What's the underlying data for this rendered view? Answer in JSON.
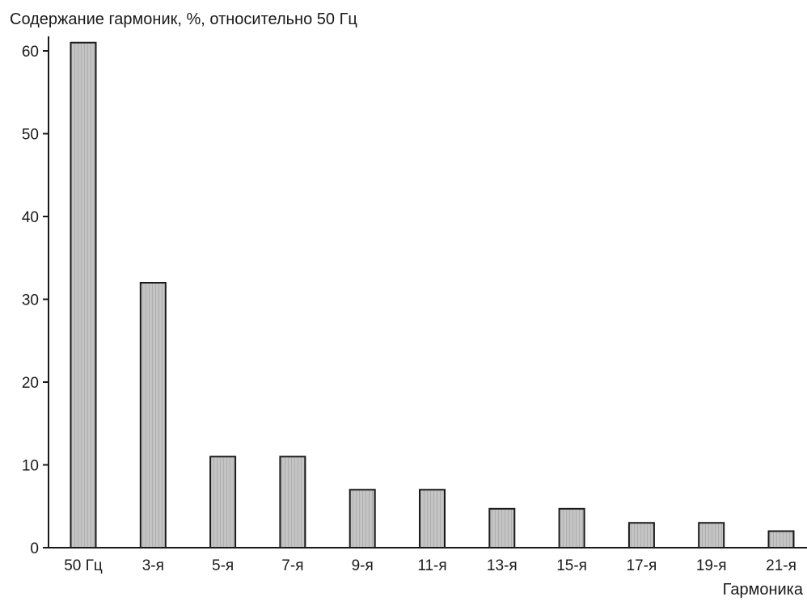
{
  "chart_data": {
    "type": "bar",
    "title": "",
    "ylabel": "Содержание гармоник, %, относительно 50 Гц",
    "xlabel": "Гармоника",
    "categories": [
      "50 Гц",
      "3-я",
      "5-я",
      "7-я",
      "9-я",
      "11-я",
      "13-я",
      "15-я",
      "17-я",
      "19-я",
      "21-я"
    ],
    "values": [
      61,
      32,
      11,
      11,
      7,
      7,
      4.7,
      4.7,
      3,
      3,
      2
    ],
    "ylim": [
      0,
      65
    ],
    "yticks": [
      0,
      10,
      20,
      30,
      40,
      50,
      60
    ],
    "grid": false,
    "legend": "none",
    "bar_color": "#bdbdbd",
    "edge_color": "#1a1a1a"
  }
}
